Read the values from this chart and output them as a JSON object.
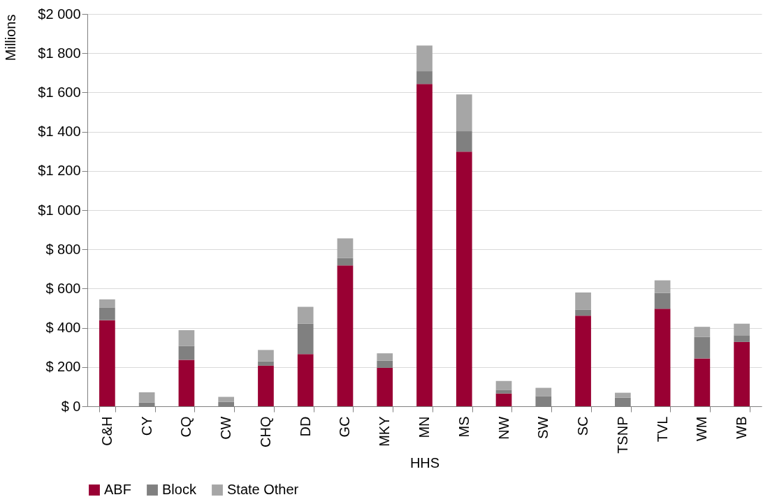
{
  "chart_data": {
    "type": "bar",
    "stacked": true,
    "xlabel": "HHS",
    "ylabel": "Millions",
    "categories": [
      "C&H",
      "CY",
      "CQ",
      "CW",
      "CHQ",
      "DD",
      "GC",
      "MKY",
      "MN",
      "MS",
      "NW",
      "SW",
      "SC",
      "TSNP",
      "TVL",
      "WM",
      "WB"
    ],
    "series": [
      {
        "name": "ABF",
        "color": "#990033",
        "values": [
          439,
          0,
          237,
          0,
          207,
          266,
          718,
          196,
          1643,
          1298,
          65,
          0,
          462,
          0,
          497,
          244,
          328
        ]
      },
      {
        "name": "Block",
        "color": "#808080",
        "values": [
          65,
          20,
          71,
          23,
          22,
          156,
          37,
          37,
          65,
          104,
          19,
          52,
          31,
          44,
          81,
          110,
          34
        ]
      },
      {
        "name": "State Other",
        "color": "#a6a6a6",
        "values": [
          41,
          51,
          80,
          25,
          58,
          85,
          101,
          37,
          131,
          188,
          45,
          42,
          87,
          25,
          64,
          51,
          59
        ]
      }
    ],
    "ylim": [
      0,
      2000
    ],
    "yticks": [
      {
        "value": 0,
        "label": "$ 0"
      },
      {
        "value": 200,
        "label": "$ 200"
      },
      {
        "value": 400,
        "label": "$ 400"
      },
      {
        "value": 600,
        "label": "$ 600"
      },
      {
        "value": 800,
        "label": "$ 800"
      },
      {
        "value": 1000,
        "label": "$1 000"
      },
      {
        "value": 1200,
        "label": "$1 200"
      },
      {
        "value": 1400,
        "label": "$1 400"
      },
      {
        "value": 1600,
        "label": "$1 600"
      },
      {
        "value": 1800,
        "label": "$1 800"
      },
      {
        "value": 2000,
        "label": "$2 000"
      }
    ],
    "grid": "y",
    "legend": "bottom"
  }
}
